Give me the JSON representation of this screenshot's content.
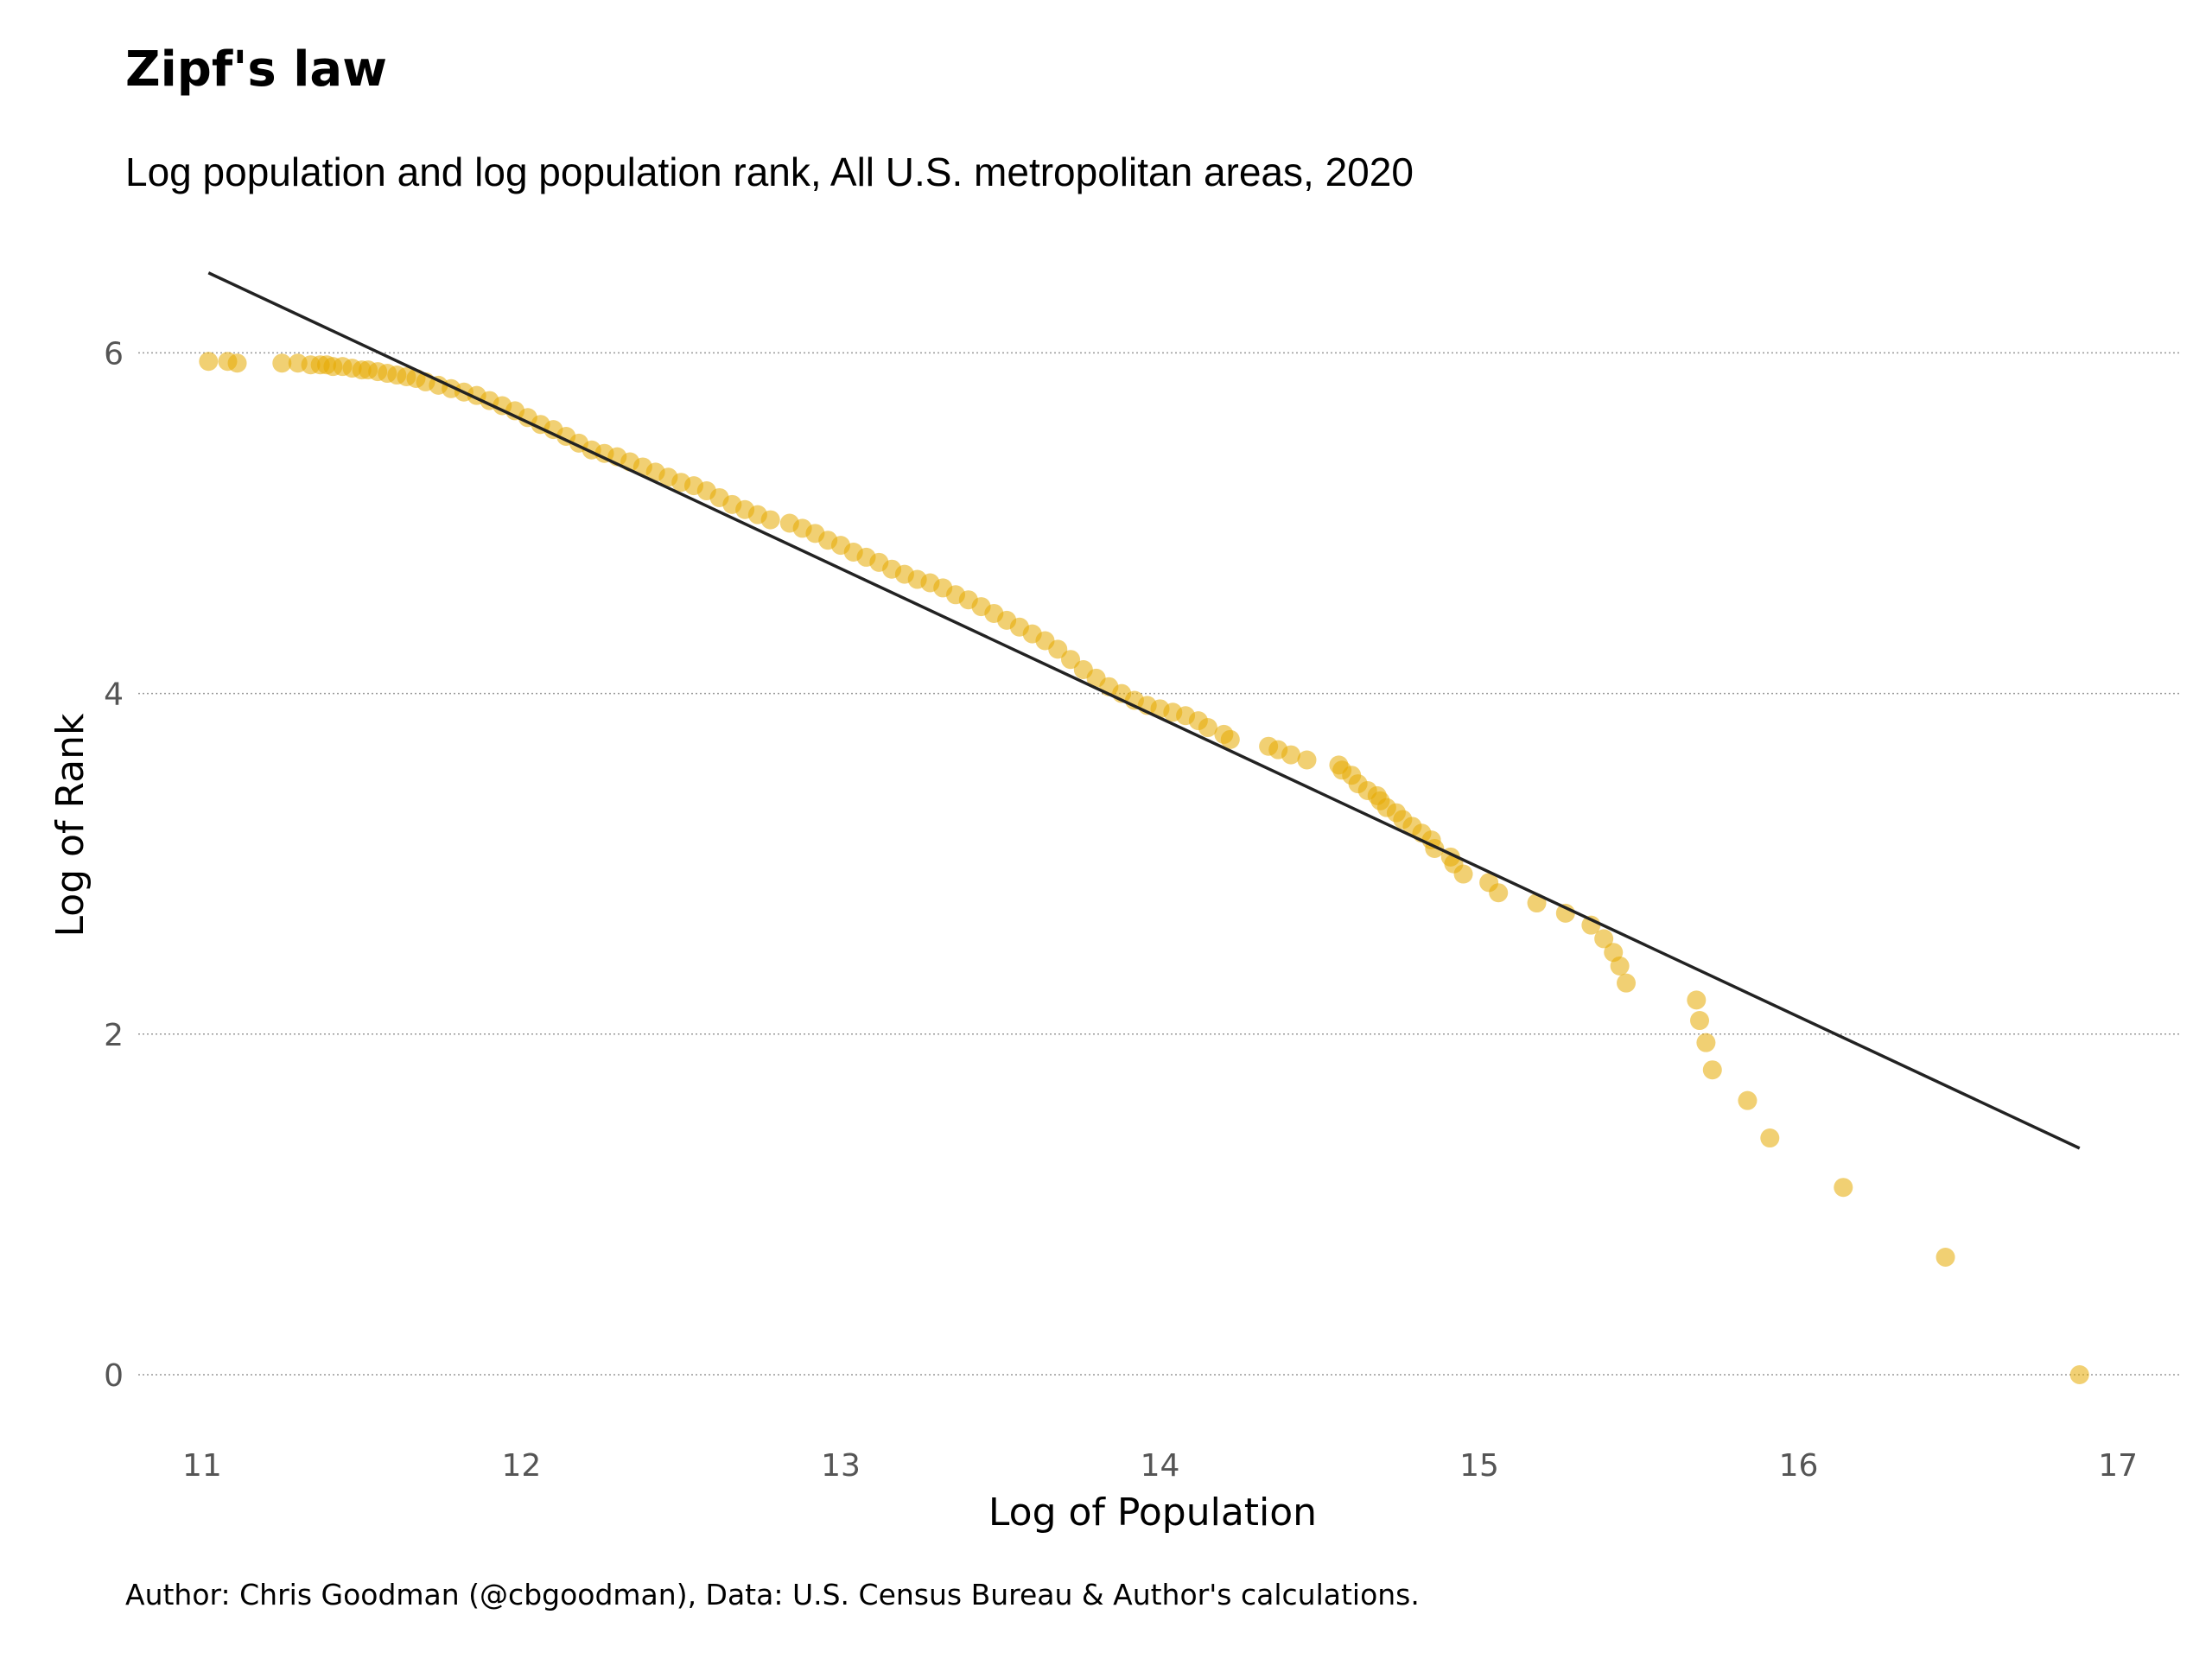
{
  "title": "Zipf's law",
  "subtitle": "Log population and log population rank, All U.S. metropolitan areas, 2020",
  "caption": "Author: Chris Goodman (@cbgoodman), Data: U.S. Census Bureau & Author's calculations.",
  "colors": {
    "points": "#E6A900",
    "fit_line": "#222222",
    "grid": "#999999"
  },
  "chart_data": {
    "type": "scatter",
    "title": "Zipf's law",
    "subtitle": "Log population and log population rank, All U.S. metropolitan areas, 2020",
    "xlabel": "Log of Population",
    "ylabel": "Log of Rank",
    "xlim": [
      10.8,
      17.2
    ],
    "ylim": [
      -0.35,
      6.55
    ],
    "x_ticks": [
      11,
      12,
      13,
      14,
      15,
      16,
      17
    ],
    "y_ticks": [
      0,
      2,
      4,
      6
    ],
    "grid": "horizontal dotted",
    "fit_line": {
      "x": [
        11.02,
        16.88
      ],
      "y": [
        6.47,
        1.33
      ]
    },
    "points": [
      [
        11.02,
        5.95
      ],
      [
        11.08,
        5.95
      ],
      [
        11.11,
        5.94
      ],
      [
        11.25,
        5.94
      ],
      [
        11.3,
        5.94
      ],
      [
        11.34,
        5.93
      ],
      [
        11.37,
        5.93
      ],
      [
        11.39,
        5.93
      ],
      [
        11.41,
        5.92
      ],
      [
        11.44,
        5.92
      ],
      [
        11.47,
        5.91
      ],
      [
        11.5,
        5.9
      ],
      [
        11.52,
        5.9
      ],
      [
        11.55,
        5.89
      ],
      [
        11.58,
        5.88
      ],
      [
        11.61,
        5.87
      ],
      [
        11.64,
        5.86
      ],
      [
        11.67,
        5.85
      ],
      [
        11.7,
        5.83
      ],
      [
        11.74,
        5.81
      ],
      [
        11.78,
        5.79
      ],
      [
        11.82,
        5.77
      ],
      [
        11.86,
        5.75
      ],
      [
        11.9,
        5.72
      ],
      [
        11.94,
        5.69
      ],
      [
        11.98,
        5.66
      ],
      [
        12.02,
        5.62
      ],
      [
        12.06,
        5.58
      ],
      [
        12.1,
        5.55
      ],
      [
        12.14,
        5.51
      ],
      [
        12.18,
        5.47
      ],
      [
        12.22,
        5.43
      ],
      [
        12.26,
        5.41
      ],
      [
        12.3,
        5.39
      ],
      [
        12.34,
        5.36
      ],
      [
        12.38,
        5.33
      ],
      [
        12.42,
        5.3
      ],
      [
        12.46,
        5.27
      ],
      [
        12.5,
        5.24
      ],
      [
        12.54,
        5.22
      ],
      [
        12.58,
        5.19
      ],
      [
        12.62,
        5.15
      ],
      [
        12.66,
        5.11
      ],
      [
        12.7,
        5.08
      ],
      [
        12.74,
        5.05
      ],
      [
        12.78,
        5.02
      ],
      [
        12.84,
        5.0
      ],
      [
        12.88,
        4.97
      ],
      [
        12.92,
        4.94
      ],
      [
        12.96,
        4.9
      ],
      [
        13.0,
        4.87
      ],
      [
        13.04,
        4.83
      ],
      [
        13.08,
        4.8
      ],
      [
        13.12,
        4.77
      ],
      [
        13.16,
        4.73
      ],
      [
        13.2,
        4.7
      ],
      [
        13.24,
        4.67
      ],
      [
        13.28,
        4.65
      ],
      [
        13.32,
        4.62
      ],
      [
        13.36,
        4.58
      ],
      [
        13.4,
        4.55
      ],
      [
        13.44,
        4.51
      ],
      [
        13.48,
        4.47
      ],
      [
        13.52,
        4.43
      ],
      [
        13.56,
        4.39
      ],
      [
        13.6,
        4.35
      ],
      [
        13.64,
        4.31
      ],
      [
        13.68,
        4.26
      ],
      [
        13.72,
        4.2
      ],
      [
        13.76,
        4.14
      ],
      [
        13.8,
        4.09
      ],
      [
        13.84,
        4.04
      ],
      [
        13.88,
        4.0
      ],
      [
        13.92,
        3.96
      ],
      [
        13.96,
        3.93
      ],
      [
        14.0,
        3.91
      ],
      [
        14.04,
        3.89
      ],
      [
        14.08,
        3.87
      ],
      [
        14.12,
        3.84
      ],
      [
        14.15,
        3.8
      ],
      [
        14.2,
        3.76
      ],
      [
        14.22,
        3.73
      ],
      [
        14.34,
        3.69
      ],
      [
        14.37,
        3.67
      ],
      [
        14.41,
        3.64
      ],
      [
        14.46,
        3.61
      ],
      [
        14.56,
        3.58
      ],
      [
        14.57,
        3.55
      ],
      [
        14.6,
        3.52
      ],
      [
        14.62,
        3.47
      ],
      [
        14.65,
        3.43
      ],
      [
        14.68,
        3.4
      ],
      [
        14.69,
        3.37
      ],
      [
        14.71,
        3.33
      ],
      [
        14.74,
        3.3
      ],
      [
        14.76,
        3.26
      ],
      [
        14.79,
        3.22
      ],
      [
        14.82,
        3.18
      ],
      [
        14.85,
        3.14
      ],
      [
        14.86,
        3.09
      ],
      [
        14.91,
        3.04
      ],
      [
        14.92,
        3.0
      ],
      [
        14.95,
        2.94
      ],
      [
        15.03,
        2.89
      ],
      [
        15.06,
        2.83
      ],
      [
        15.18,
        2.77
      ],
      [
        15.27,
        2.71
      ],
      [
        15.35,
        2.64
      ],
      [
        15.39,
        2.56
      ],
      [
        15.42,
        2.48
      ],
      [
        15.44,
        2.4
      ],
      [
        15.46,
        2.3
      ],
      [
        15.68,
        2.2
      ],
      [
        15.69,
        2.08
      ],
      [
        15.71,
        1.95
      ],
      [
        15.73,
        1.79
      ],
      [
        15.84,
        1.61
      ],
      [
        15.91,
        1.39
      ],
      [
        16.14,
        1.1
      ],
      [
        16.46,
        0.69
      ],
      [
        16.88,
        0.0
      ]
    ]
  }
}
